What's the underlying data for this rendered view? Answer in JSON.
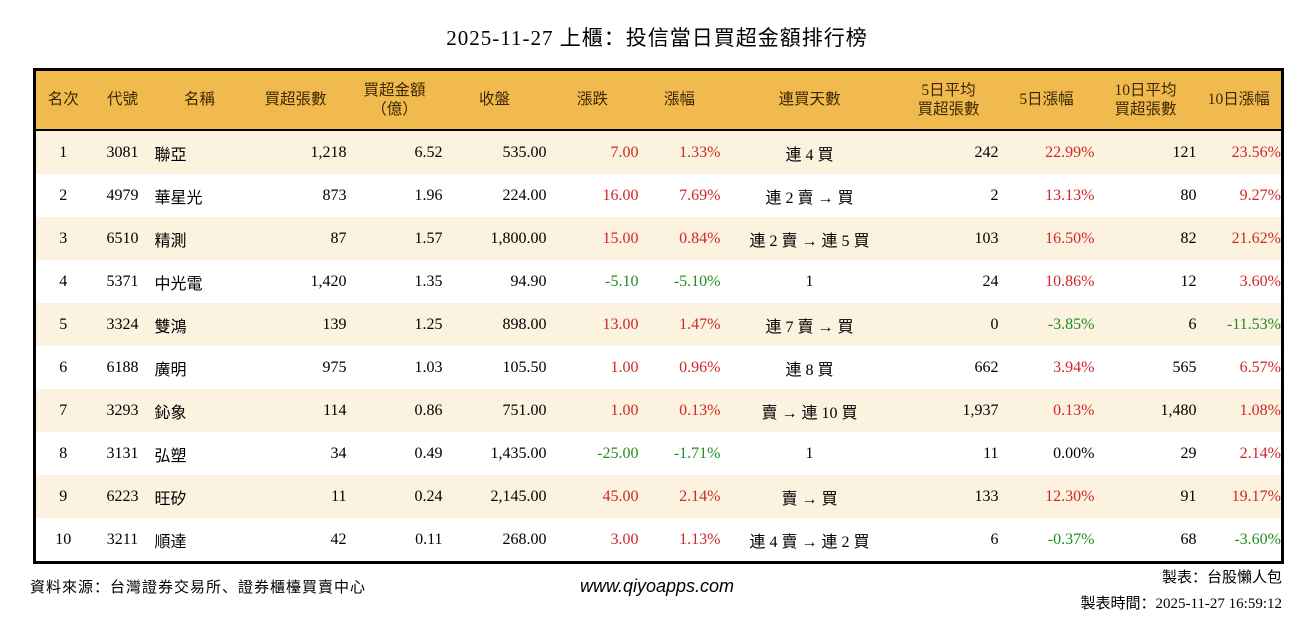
{
  "title": "2025-11-27 上櫃：投信當日買超金額排行榜",
  "colors": {
    "header_bg": "#f1ba4f",
    "row_alt_bg": "#fbf3df",
    "header_text": "#3a2900",
    "border": "#000000",
    "up": "#d22626",
    "down": "#1f8f1f",
    "flat": "#000000"
  },
  "chart_data": {
    "type": "table",
    "title": "2025-11-27 上櫃：投信當日買超金額排行榜",
    "columns": [
      "名次",
      "代號",
      "名稱",
      "買超張數",
      "買超金額\n（億）",
      "收盤",
      "漲跌",
      "漲幅",
      "連買天數",
      "5日平均\n買超張數",
      "5日漲幅",
      "10日平均\n買超張數",
      "10日漲幅"
    ],
    "rows": [
      {
        "rank": "1",
        "code": "3081",
        "name": "聯亞",
        "lots": "1,218",
        "amount": "6.52",
        "close": "535.00",
        "chg": "7.00",
        "chg_c": "up",
        "pct": "1.33%",
        "pct_c": "up",
        "streak": "連 4 買",
        "avg5": "242",
        "p5": "22.99%",
        "p5_c": "up",
        "avg10": "121",
        "p10": "23.56%",
        "p10_c": "up"
      },
      {
        "rank": "2",
        "code": "4979",
        "name": "華星光",
        "lots": "873",
        "amount": "1.96",
        "close": "224.00",
        "chg": "16.00",
        "chg_c": "up",
        "pct": "7.69%",
        "pct_c": "up",
        "streak": "連 2 賣 → 買",
        "avg5": "2",
        "p5": "13.13%",
        "p5_c": "up",
        "avg10": "80",
        "p10": "9.27%",
        "p10_c": "up"
      },
      {
        "rank": "3",
        "code": "6510",
        "name": "精測",
        "lots": "87",
        "amount": "1.57",
        "close": "1,800.00",
        "chg": "15.00",
        "chg_c": "up",
        "pct": "0.84%",
        "pct_c": "up",
        "streak": "連 2 賣 → 連 5 買",
        "avg5": "103",
        "p5": "16.50%",
        "p5_c": "up",
        "avg10": "82",
        "p10": "21.62%",
        "p10_c": "up"
      },
      {
        "rank": "4",
        "code": "5371",
        "name": "中光電",
        "lots": "1,420",
        "amount": "1.35",
        "close": "94.90",
        "chg": "-5.10",
        "chg_c": "down",
        "pct": "-5.10%",
        "pct_c": "down",
        "streak": "1",
        "avg5": "24",
        "p5": "10.86%",
        "p5_c": "up",
        "avg10": "12",
        "p10": "3.60%",
        "p10_c": "up"
      },
      {
        "rank": "5",
        "code": "3324",
        "name": "雙鴻",
        "lots": "139",
        "amount": "1.25",
        "close": "898.00",
        "chg": "13.00",
        "chg_c": "up",
        "pct": "1.47%",
        "pct_c": "up",
        "streak": "連 7 賣 → 買",
        "avg5": "0",
        "p5": "-3.85%",
        "p5_c": "down",
        "avg10": "6",
        "p10": "-11.53%",
        "p10_c": "down"
      },
      {
        "rank": "6",
        "code": "6188",
        "name": "廣明",
        "lots": "975",
        "amount": "1.03",
        "close": "105.50",
        "chg": "1.00",
        "chg_c": "up",
        "pct": "0.96%",
        "pct_c": "up",
        "streak": "連 8 買",
        "avg5": "662",
        "p5": "3.94%",
        "p5_c": "up",
        "avg10": "565",
        "p10": "6.57%",
        "p10_c": "up"
      },
      {
        "rank": "7",
        "code": "3293",
        "name": "鈊象",
        "lots": "114",
        "amount": "0.86",
        "close": "751.00",
        "chg": "1.00",
        "chg_c": "up",
        "pct": "0.13%",
        "pct_c": "up",
        "streak": "賣 → 連 10 買",
        "avg5": "1,937",
        "p5": "0.13%",
        "p5_c": "up",
        "avg10": "1,480",
        "p10": "1.08%",
        "p10_c": "up"
      },
      {
        "rank": "8",
        "code": "3131",
        "name": "弘塑",
        "lots": "34",
        "amount": "0.49",
        "close": "1,435.00",
        "chg": "-25.00",
        "chg_c": "down",
        "pct": "-1.71%",
        "pct_c": "down",
        "streak": "1",
        "avg5": "11",
        "p5": "0.00%",
        "p5_c": "flat",
        "avg10": "29",
        "p10": "2.14%",
        "p10_c": "up"
      },
      {
        "rank": "9",
        "code": "6223",
        "name": "旺矽",
        "lots": "11",
        "amount": "0.24",
        "close": "2,145.00",
        "chg": "45.00",
        "chg_c": "up",
        "pct": "2.14%",
        "pct_c": "up",
        "streak": "賣 → 買",
        "avg5": "133",
        "p5": "12.30%",
        "p5_c": "up",
        "avg10": "91",
        "p10": "19.17%",
        "p10_c": "up"
      },
      {
        "rank": "10",
        "code": "3211",
        "name": "順達",
        "lots": "42",
        "amount": "0.11",
        "close": "268.00",
        "chg": "3.00",
        "chg_c": "up",
        "pct": "1.13%",
        "pct_c": "up",
        "streak": "連 4 賣 → 連 2 買",
        "avg5": "6",
        "p5": "-0.37%",
        "p5_c": "down",
        "avg10": "68",
        "p10": "-3.60%",
        "p10_c": "down"
      }
    ]
  },
  "footer": {
    "source": "資料來源：台灣證券交易所、證券櫃檯買賣中心",
    "website": "www.qiyoapps.com",
    "maker": "製表：台股懶人包",
    "timestamp": "製表時間：2025-11-27 16:59:12"
  }
}
